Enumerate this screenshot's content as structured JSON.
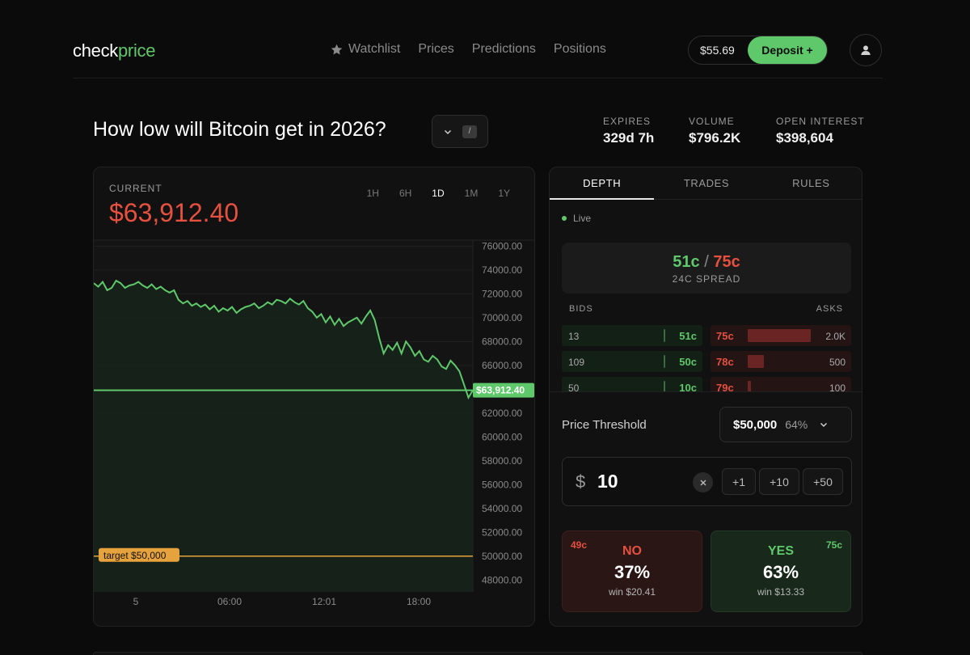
{
  "header": {
    "logo_main": "check",
    "logo_accent": "price",
    "nav": [
      {
        "label": "Watchlist",
        "icon": "star-icon"
      },
      {
        "label": "Prices"
      },
      {
        "label": "Predictions"
      },
      {
        "label": "Positions"
      }
    ],
    "balance": "$55.69",
    "deposit_label": "Deposit +",
    "avatar_icon": "user-icon"
  },
  "market": {
    "title": "How low will Bitcoin get in 2026?",
    "shortcut_key": "/",
    "stats": [
      {
        "label": "EXPIRES",
        "value": "329d 7h"
      },
      {
        "label": "VOLUME",
        "value": "$796.2K"
      },
      {
        "label": "OPEN INTEREST",
        "value": "$398,604"
      }
    ]
  },
  "chart_panel": {
    "current_label": "CURRENT",
    "current_value": "$63,912.40",
    "ranges": [
      "1H",
      "6H",
      "1D",
      "1M",
      "1Y"
    ],
    "active_range": "1D"
  },
  "chart_data": {
    "type": "line",
    "series": [
      {
        "values": [
          72900,
          72600,
          73000,
          72300,
          72500,
          73100,
          72900,
          72500,
          72700,
          72800,
          73000,
          72700,
          72500,
          72800,
          72400,
          72600,
          72300,
          72100,
          72300,
          71500,
          71200,
          71400,
          71000,
          71200,
          70900,
          71100,
          70700,
          71000,
          70500,
          70800,
          70600,
          70900,
          70400,
          70700,
          70900,
          71000,
          71200,
          70800,
          71000,
          71300,
          71100,
          71500,
          71400,
          71200,
          71600,
          71300,
          71100,
          71400,
          70800,
          70500,
          70000,
          70300,
          69600,
          70100,
          69400,
          69900,
          69300,
          69600,
          69800,
          70000,
          69500,
          70100,
          70600,
          69800,
          68300,
          67000,
          67700,
          67300,
          67900,
          67000,
          68000,
          67500,
          66800,
          67200,
          66500,
          66300,
          66800,
          66500,
          65900,
          65700,
          66400,
          66000,
          65500,
          64400,
          63300,
          63912
        ]
      }
    ],
    "current_price": 63912.4,
    "current_price_label": "$63,912.40",
    "target_price": 50000,
    "target_label": "target $50,000",
    "y_ticks": [
      "76000.00",
      "74000.00",
      "72000.00",
      "70000.00",
      "68000.00",
      "66000.00",
      "62000.00",
      "60000.00",
      "58000.00",
      "56000.00",
      "54000.00",
      "52000.00",
      "50000.00",
      "48000.00"
    ],
    "y_tick_values": [
      76000,
      74000,
      72000,
      70000,
      68000,
      66000,
      62000,
      60000,
      58000,
      56000,
      54000,
      52000,
      50000,
      48000
    ],
    "x_ticks": [
      "5",
      "06:00",
      "12:01",
      "18:00"
    ],
    "ylim": [
      47000,
      76500
    ],
    "colors": {
      "line": "#5ec86a",
      "target": "#e6a23c",
      "grid": "#1f1f1f"
    }
  },
  "book": {
    "tabs": [
      "DEPTH",
      "TRADES",
      "RULES"
    ],
    "active_tab": "DEPTH",
    "live_label": "Live",
    "spread_bid": "51c",
    "spread_sep": "/",
    "spread_ask": "75c",
    "spread_label": "24C SPREAD",
    "bids_label": "BIDS",
    "asks_label": "ASKS",
    "rows": [
      {
        "bid_qty": "13",
        "bid_price": "51c",
        "bid_depth": 0.02,
        "ask_price": "75c",
        "ask_qty": "2.0K",
        "ask_depth": 1.0
      },
      {
        "bid_qty": "109",
        "bid_price": "50c",
        "bid_depth": 0.05,
        "ask_price": "78c",
        "ask_qty": "500",
        "ask_depth": 0.25
      },
      {
        "bid_qty": "50",
        "bid_price": "10c",
        "bid_depth": 0.02,
        "ask_price": "79c",
        "ask_qty": "100",
        "ask_depth": 0.05
      }
    ],
    "threshold_label": "Price Threshold",
    "threshold_value": "$50,000",
    "threshold_pct": "64%",
    "amount_currency": "$",
    "amount_value": "10",
    "increments": [
      "+1",
      "+10",
      "+50"
    ],
    "no": {
      "cents": "49c",
      "label": "NO",
      "pct": "37%",
      "win": "win $20.41"
    },
    "yes": {
      "cents": "75c",
      "label": "YES",
      "pct": "63%",
      "win": "win $13.33"
    }
  }
}
